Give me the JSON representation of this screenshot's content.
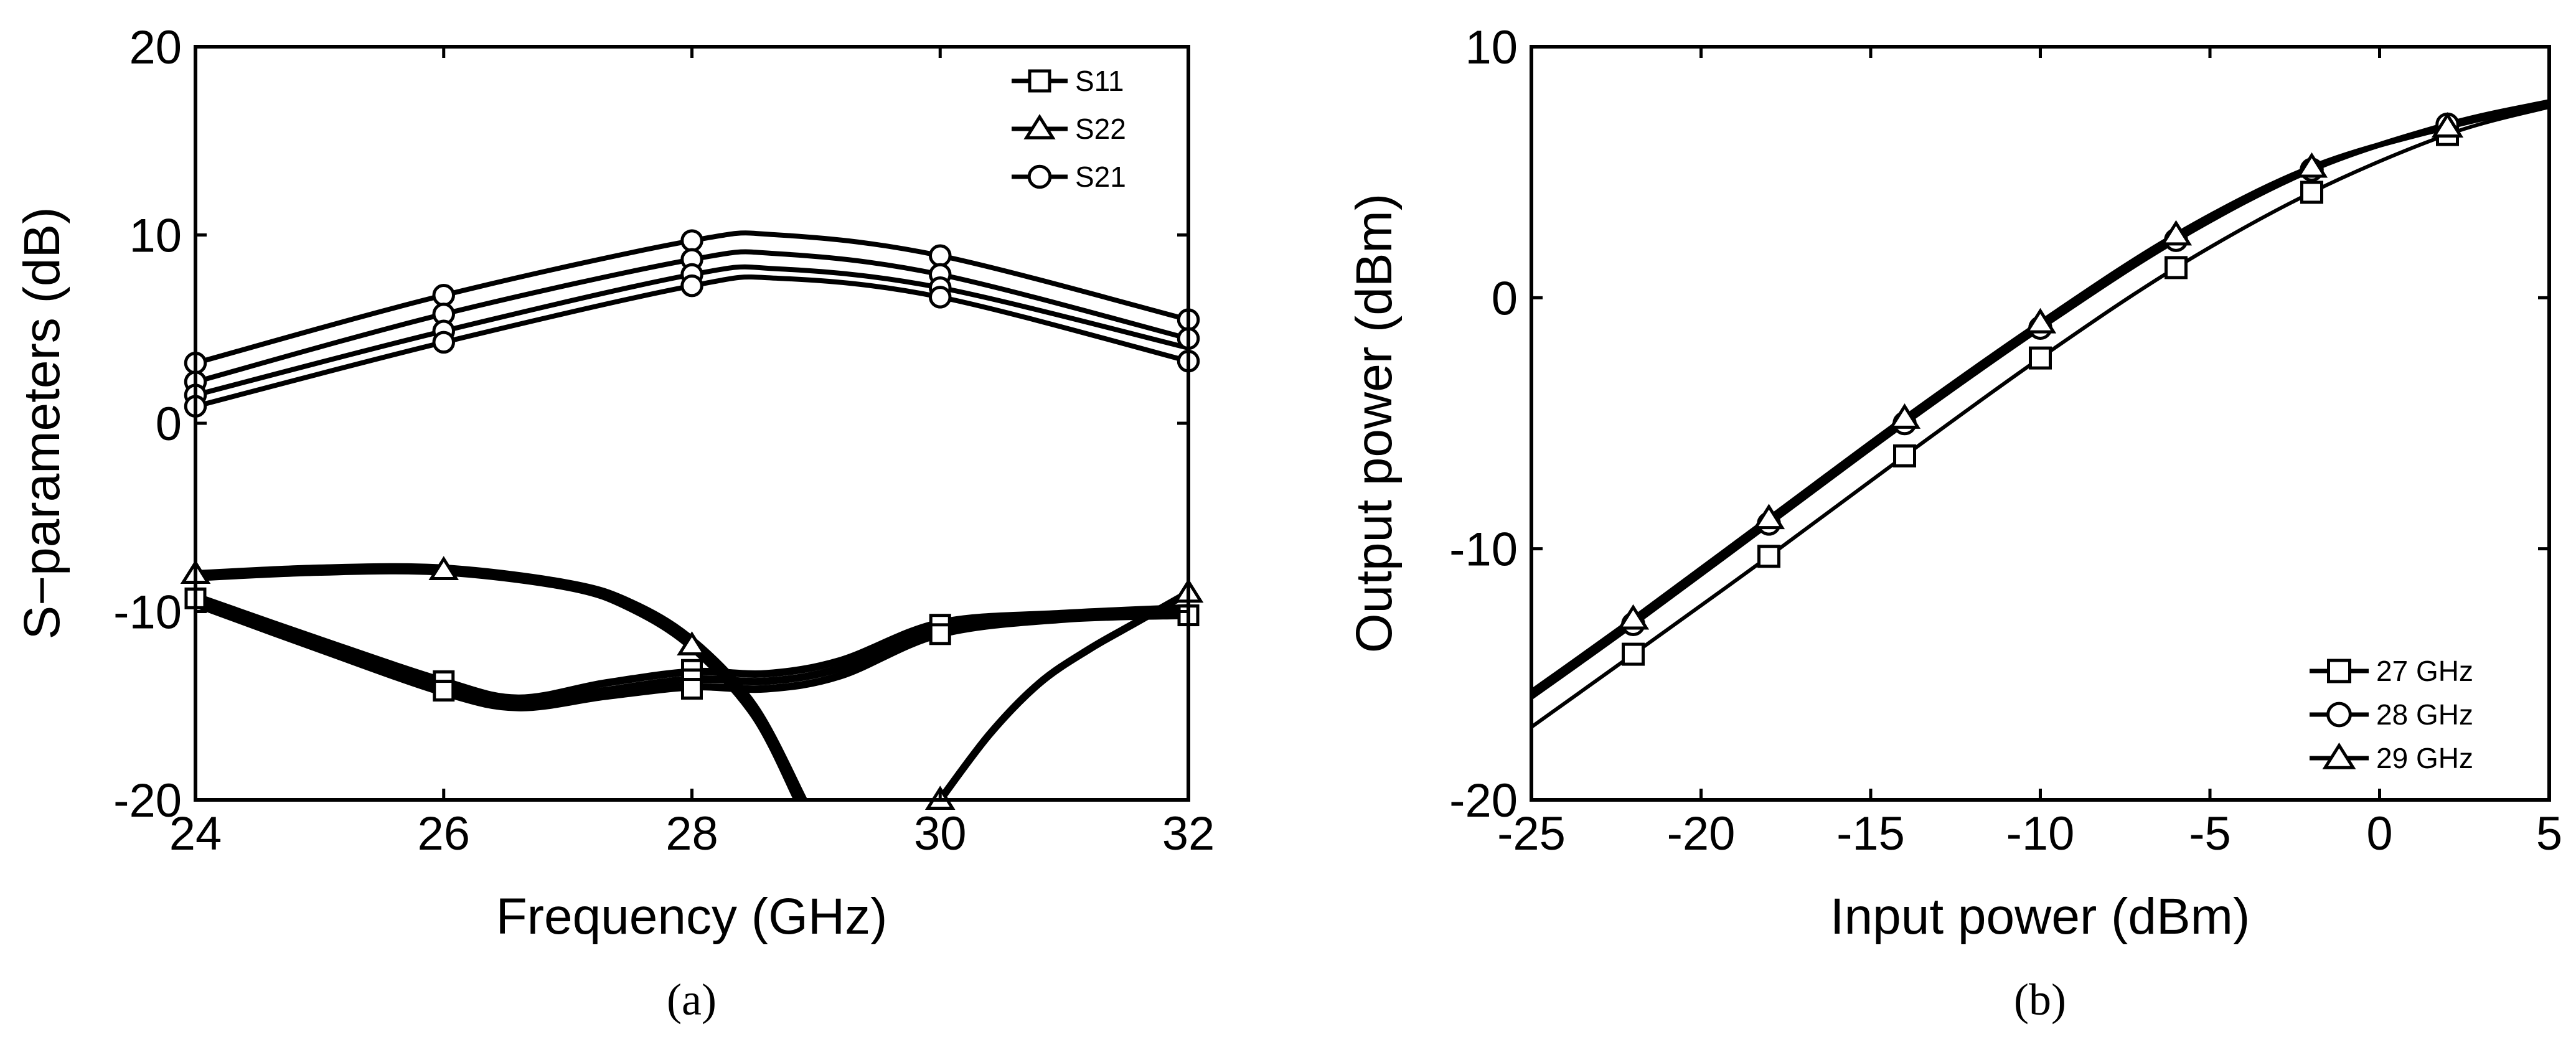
{
  "chart_data": [
    {
      "type": "line",
      "panel_label": "(a)",
      "title": "",
      "xlabel": "Frequency (GHz)",
      "ylabel": "S−parameters (dB)",
      "xlim": [
        24,
        32
      ],
      "ylim": [
        -20,
        20
      ],
      "xticks": [
        "24",
        "26",
        "28",
        "30",
        "32"
      ],
      "yticks": [
        "-20",
        "-10",
        "0",
        "10",
        "20"
      ],
      "legend_position": "top-right",
      "legend": [
        {
          "name": "S11",
          "marker": "square"
        },
        {
          "name": "S22",
          "marker": "triangle"
        },
        {
          "name": "S21",
          "marker": "circle"
        }
      ],
      "series": [
        {
          "name": "S21",
          "marker": "circle",
          "x": [
            24,
            26,
            28,
            28.7,
            30,
            32
          ],
          "y": [
            3.2,
            6.8,
            9.7,
            10.0,
            8.9,
            5.5
          ]
        },
        {
          "name": "S21",
          "marker": "circle",
          "x": [
            24,
            26,
            28,
            28.7,
            30,
            32
          ],
          "y": [
            2.2,
            5.8,
            8.7,
            9.0,
            7.9,
            4.5
          ]
        },
        {
          "name": "S21",
          "marker": "circle",
          "x": [
            24,
            26,
            28,
            28.7,
            30,
            32
          ],
          "y": [
            1.5,
            4.9,
            7.9,
            8.2,
            7.2,
            4.0
          ]
        },
        {
          "name": "S21",
          "marker": "circle",
          "x": [
            24,
            26,
            28,
            28.7,
            30,
            32
          ],
          "y": [
            0.9,
            4.3,
            7.3,
            7.7,
            6.7,
            3.3
          ]
        },
        {
          "name": "S11",
          "marker": "square",
          "x": [
            24,
            25,
            26,
            26.6,
            27.3,
            28,
            28.6,
            29.2,
            30,
            31,
            32
          ],
          "y": [
            -9.2,
            -11.5,
            -13.7,
            -14.6,
            -13.8,
            -13.2,
            -13.3,
            -12.6,
            -10.6,
            -10.1,
            -9.8
          ]
        },
        {
          "name": "S11",
          "marker": "square",
          "x": [
            24,
            25,
            26,
            26.6,
            27.3,
            28,
            28.6,
            29.2,
            30,
            31,
            32
          ],
          "y": [
            -9.4,
            -11.8,
            -14.0,
            -14.9,
            -14.2,
            -13.6,
            -13.7,
            -13.0,
            -10.9,
            -10.3,
            -10.0
          ]
        },
        {
          "name": "S11",
          "marker": "square",
          "x": [
            24,
            25,
            26,
            26.6,
            27.3,
            28,
            28.6,
            29.2,
            30,
            31,
            32
          ],
          "y": [
            -9.6,
            -12.0,
            -14.3,
            -15.1,
            -14.5,
            -14.0,
            -14.1,
            -13.4,
            -11.2,
            -10.4,
            -10.2
          ]
        },
        {
          "name": "S22",
          "marker": "triangle",
          "x": [
            24,
            25,
            26,
            27,
            27.5,
            28,
            28.5,
            28.9
          ],
          "y": [
            -8.0,
            -7.7,
            -7.7,
            -8.5,
            -9.5,
            -11.5,
            -15.0,
            -20.0
          ]
        },
        {
          "name": "S22",
          "marker": "triangle",
          "x": [
            24,
            25,
            26,
            27,
            27.5,
            28,
            28.5,
            28.85
          ],
          "y": [
            -8.2,
            -7.9,
            -7.9,
            -8.7,
            -9.8,
            -11.9,
            -15.5,
            -20.0
          ]
        },
        {
          "name": "S22",
          "marker": "triangle",
          "x": [
            30,
            30.4,
            30.8,
            31.2,
            31.6,
            32
          ],
          "y": [
            -20.0,
            -16.5,
            -13.8,
            -12.0,
            -10.5,
            -9.0
          ]
        }
      ],
      "markers": [
        {
          "series": "S21",
          "x": 24,
          "y": 3.2
        },
        {
          "series": "S21",
          "x": 24,
          "y": 2.2
        },
        {
          "series": "S21",
          "x": 24,
          "y": 1.5
        },
        {
          "series": "S21",
          "x": 24,
          "y": 0.9
        },
        {
          "series": "S21",
          "x": 26,
          "y": 6.8
        },
        {
          "series": "S21",
          "x": 26,
          "y": 5.8
        },
        {
          "series": "S21",
          "x": 26,
          "y": 4.9
        },
        {
          "series": "S21",
          "x": 26,
          "y": 4.3
        },
        {
          "series": "S21",
          "x": 28,
          "y": 9.7
        },
        {
          "series": "S21",
          "x": 28,
          "y": 8.7
        },
        {
          "series": "S21",
          "x": 28,
          "y": 7.9
        },
        {
          "series": "S21",
          "x": 28,
          "y": 7.3
        },
        {
          "series": "S21",
          "x": 30,
          "y": 8.9
        },
        {
          "series": "S21",
          "x": 30,
          "y": 7.9
        },
        {
          "series": "S21",
          "x": 30,
          "y": 7.2
        },
        {
          "series": "S21",
          "x": 30,
          "y": 6.7
        },
        {
          "series": "S21",
          "x": 32,
          "y": 5.5
        },
        {
          "series": "S21",
          "x": 32,
          "y": 4.5
        },
        {
          "series": "S21",
          "x": 32,
          "y": 3.3
        },
        {
          "series": "S11",
          "x": 24,
          "y": -9.3
        },
        {
          "series": "S11",
          "x": 26,
          "y": -13.7
        },
        {
          "series": "S11",
          "x": 26,
          "y": -14.2
        },
        {
          "series": "S11",
          "x": 28,
          "y": -13.1
        },
        {
          "series": "S11",
          "x": 28,
          "y": -13.6
        },
        {
          "series": "S11",
          "x": 28,
          "y": -14.1
        },
        {
          "series": "S11",
          "x": 30,
          "y": -10.7
        },
        {
          "series": "S11",
          "x": 30,
          "y": -11.2
        },
        {
          "series": "S11",
          "x": 32,
          "y": -10.2
        },
        {
          "series": "S22",
          "x": 24,
          "y": -8.0
        },
        {
          "series": "S22",
          "x": 26,
          "y": -7.8
        },
        {
          "series": "S22",
          "x": 28,
          "y": -11.8
        },
        {
          "series": "S22",
          "x": 30,
          "y": -20.0
        },
        {
          "series": "S22",
          "x": 32,
          "y": -9.0
        }
      ]
    },
    {
      "type": "line",
      "panel_label": "(b)",
      "title": "",
      "xlabel": "Input power (dBm)",
      "ylabel": "Output power (dBm)",
      "xlim": [
        -25,
        5
      ],
      "ylim": [
        -20,
        10
      ],
      "xticks": [
        "-25",
        "-20",
        "-15",
        "-10",
        "-5",
        "0",
        "5"
      ],
      "yticks": [
        "-20",
        "-10",
        "0",
        "10"
      ],
      "legend_position": "bottom-right",
      "legend": [
        {
          "name": "27 GHz",
          "marker": "square"
        },
        {
          "name": "28 GHz",
          "marker": "circle"
        },
        {
          "name": "29 GHz",
          "marker": "triangle"
        }
      ],
      "series": [
        {
          "name": "27 GHz",
          "marker": "square",
          "x": [
            -25,
            -22,
            -18,
            -14,
            -10,
            -6,
            -2,
            2,
            5
          ],
          "y": [
            -17.1,
            -14.2,
            -10.3,
            -6.3,
            -2.4,
            1.2,
            4.2,
            6.5,
            7.6
          ]
        },
        {
          "name": "28 GHz",
          "marker": "circle",
          "x": [
            -25,
            -22,
            -18,
            -14,
            -10,
            -6,
            -2,
            2,
            5
          ],
          "y": [
            -15.9,
            -13.0,
            -9.0,
            -5.0,
            -1.2,
            2.3,
            5.1,
            6.9,
            7.8
          ]
        },
        {
          "name": "29 GHz",
          "marker": "triangle",
          "x": [
            -25,
            -22,
            -18,
            -14,
            -10,
            -6,
            -2,
            2,
            5
          ],
          "y": [
            -15.7,
            -12.8,
            -8.8,
            -4.8,
            -1.0,
            2.5,
            5.2,
            6.8,
            7.7
          ]
        }
      ],
      "markers": [
        {
          "series": "27 GHz",
          "x": -22,
          "y": -14.2
        },
        {
          "series": "27 GHz",
          "x": -18,
          "y": -10.3
        },
        {
          "series": "27 GHz",
          "x": -14,
          "y": -6.3
        },
        {
          "series": "27 GHz",
          "x": -10,
          "y": -2.4
        },
        {
          "series": "27 GHz",
          "x": -6,
          "y": 1.2
        },
        {
          "series": "27 GHz",
          "x": -2,
          "y": 4.2
        },
        {
          "series": "27 GHz",
          "x": 2,
          "y": 6.5
        },
        {
          "series": "28 GHz",
          "x": -22,
          "y": -13.0
        },
        {
          "series": "28 GHz",
          "x": -18,
          "y": -9.0
        },
        {
          "series": "28 GHz",
          "x": -14,
          "y": -5.0
        },
        {
          "series": "28 GHz",
          "x": -10,
          "y": -1.2
        },
        {
          "series": "28 GHz",
          "x": -6,
          "y": 2.3
        },
        {
          "series": "28 GHz",
          "x": -2,
          "y": 5.1
        },
        {
          "series": "28 GHz",
          "x": 2,
          "y": 6.9
        },
        {
          "series": "29 GHz",
          "x": -22,
          "y": -12.8
        },
        {
          "series": "29 GHz",
          "x": -18,
          "y": -8.8
        },
        {
          "series": "29 GHz",
          "x": -14,
          "y": -4.8
        },
        {
          "series": "29 GHz",
          "x": -10,
          "y": -1.0
        },
        {
          "series": "29 GHz",
          "x": -6,
          "y": 2.5
        },
        {
          "series": "29 GHz",
          "x": -2,
          "y": 5.2
        },
        {
          "series": "29 GHz",
          "x": 2,
          "y": 6.8
        }
      ]
    }
  ]
}
